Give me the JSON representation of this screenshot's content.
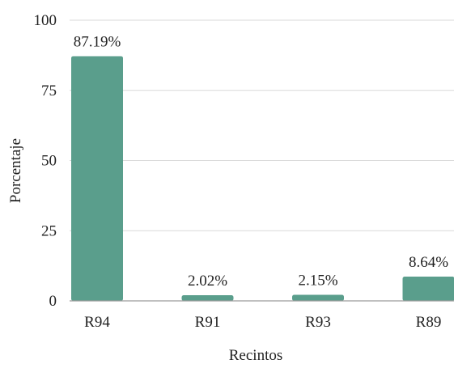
{
  "chart_data": {
    "type": "bar",
    "categories": [
      "R94",
      "R91",
      "R93",
      "R89"
    ],
    "values": [
      87.19,
      2.02,
      2.15,
      8.64
    ],
    "data_labels": [
      "87.19%",
      "2.02%",
      "2.15%",
      "8.64%"
    ],
    "title": "",
    "xlabel": "Recintos",
    "ylabel": "Porcentaje",
    "ylim": [
      0,
      100
    ],
    "yticks": [
      0,
      25,
      50,
      75,
      100
    ],
    "grid": true,
    "legend": "none",
    "bar_color": "#5a9e8c"
  }
}
